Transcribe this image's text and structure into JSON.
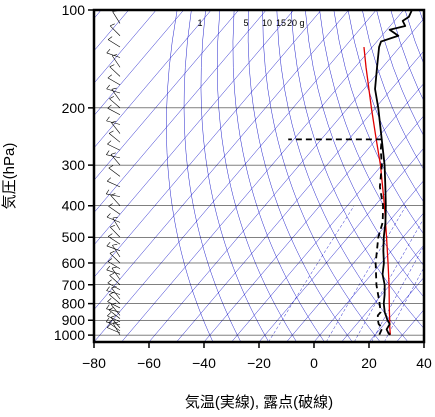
{
  "chart_data": {
    "type": "line",
    "chart_kind": "skew-T log-p diagram",
    "xlabel": "気温(実線), 露点(破線)",
    "ylabel": "気圧(hPa)",
    "xlim": [
      -80,
      40
    ],
    "ylim": [
      1050,
      100
    ],
    "y_scale": "log",
    "x_ticks": [
      -80,
      -60,
      -40,
      -20,
      0,
      20,
      40
    ],
    "x_tick_labels": [
      "−80",
      "−60",
      "−40",
      "−20",
      "0",
      "20",
      "40"
    ],
    "y_ticks": [
      100,
      200,
      300,
      400,
      500,
      600,
      700,
      800,
      900,
      1000
    ],
    "y_tick_labels": [
      "100",
      "200",
      "300",
      "400",
      "500",
      "600",
      "700",
      "800",
      "900",
      "1000"
    ],
    "grid": true,
    "mixing_ratio_labels": [
      "1",
      "5",
      "10",
      "15",
      "20",
      "g"
    ],
    "colors": {
      "temperature": "#000000",
      "dewpoint": "#000000",
      "parcel": "#e00000",
      "background_lines": "#2222cc",
      "grid": "#000000",
      "wind_barbs": "#000000"
    },
    "series": [
      {
        "key": "temperature",
        "style": "solid",
        "points": [
          {
            "p": 997,
            "t": 25.5
          },
          {
            "p": 990,
            "t": 24.6
          },
          {
            "p": 960,
            "t": 22.5
          },
          {
            "p": 925,
            "t": 22.0
          },
          {
            "p": 900,
            "t": 20.0
          },
          {
            "p": 850,
            "t": 16.5
          },
          {
            "p": 800,
            "t": 13.5
          },
          {
            "p": 750,
            "t": 11.0
          },
          {
            "p": 700,
            "t": 8.0
          },
          {
            "p": 650,
            "t": 4.0
          },
          {
            "p": 600,
            "t": 1.0
          },
          {
            "p": 550,
            "t": -3.0
          },
          {
            "p": 500,
            "t": -7.0
          },
          {
            "p": 450,
            "t": -11.0
          },
          {
            "p": 400,
            "t": -16.0
          },
          {
            "p": 350,
            "t": -22.0
          },
          {
            "p": 300,
            "t": -29.0
          },
          {
            "p": 250,
            "t": -38.0
          },
          {
            "p": 200,
            "t": -49.0
          },
          {
            "p": 175,
            "t": -56.0
          },
          {
            "p": 150,
            "t": -62.0
          },
          {
            "p": 130,
            "t": -67.5
          },
          {
            "p": 125,
            "t": -68.5
          },
          {
            "p": 120,
            "t": -64.0
          },
          {
            "p": 115,
            "t": -69.0
          },
          {
            "p": 112,
            "t": -64.5
          },
          {
            "p": 108,
            "t": -67.0
          },
          {
            "p": 105,
            "t": -66.0
          },
          {
            "p": 100,
            "t": -67.0
          }
        ]
      },
      {
        "key": "dewpoint",
        "style": "dashed",
        "points": [
          {
            "p": 997,
            "t": 21.5
          },
          {
            "p": 950,
            "t": 20.5
          },
          {
            "p": 925,
            "t": 18.0
          },
          {
            "p": 900,
            "t": 16.5
          },
          {
            "p": 870,
            "t": 15.0
          },
          {
            "p": 850,
            "t": 15.0
          },
          {
            "p": 800,
            "t": 12.0
          },
          {
            "p": 700,
            "t": 5.0
          },
          {
            "p": 600,
            "t": -2.0
          },
          {
            "p": 500,
            "t": -9.0
          },
          {
            "p": 450,
            "t": -12.0
          },
          {
            "p": 400,
            "t": -17.0
          },
          {
            "p": 350,
            "t": -24.0
          },
          {
            "p": 300,
            "t": -30.0
          },
          {
            "p": 270,
            "t": -35.0
          },
          {
            "p": 250,
            "t": -38.0
          },
          {
            "p": 250,
            "t": -72.0
          }
        ]
      },
      {
        "key": "parcel",
        "style": "solid",
        "points": [
          {
            "p": 997,
            "t": 25.5
          },
          {
            "p": 950,
            "t": 23.2
          },
          {
            "p": 900,
            "t": 20.8
          },
          {
            "p": 850,
            "t": 18.2
          },
          {
            "p": 800,
            "t": 15.5
          },
          {
            "p": 700,
            "t": 9.6
          },
          {
            "p": 600,
            "t": 2.5
          },
          {
            "p": 500,
            "t": -6.0
          },
          {
            "p": 400,
            "t": -16.5
          },
          {
            "p": 300,
            "t": -30.5
          },
          {
            "p": 250,
            "t": -40.0
          },
          {
            "p": 200,
            "t": -51.5
          },
          {
            "p": 150,
            "t": -66.0
          },
          {
            "p": 130,
            "t": -73.0
          }
        ]
      }
    ],
    "wind_barb_levels_hpa": [
      1000,
      985,
      970,
      950,
      930,
      910,
      890,
      870,
      850,
      825,
      800,
      775,
      750,
      725,
      700,
      675,
      650,
      625,
      600,
      575,
      550,
      525,
      500,
      475,
      450,
      425,
      400,
      375,
      350,
      325,
      300,
      285,
      270,
      255,
      240,
      225,
      210,
      200,
      190,
      180,
      170,
      160,
      150,
      140,
      130,
      120,
      110,
      100
    ]
  }
}
